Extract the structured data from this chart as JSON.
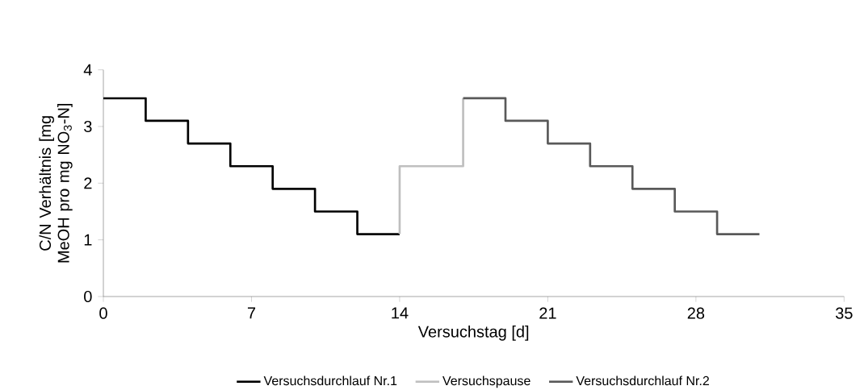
{
  "chart_data": {
    "type": "step",
    "xlabel": "Versuchstag [d]",
    "ylabel": "C/N Verhältnis [mg MeOH pro mg NO$_{3}$-N]",
    "xlim": [
      0,
      35
    ],
    "xticks": [
      0,
      7,
      14,
      21,
      28,
      35
    ],
    "ylim": [
      0,
      4
    ],
    "yticks": [
      0,
      1,
      2,
      3,
      4
    ],
    "grid": false,
    "legend": "bottom",
    "line_style": "solid",
    "marker": "none",
    "series": [
      {
        "name": "Versuchsdurchlauf Nr.1",
        "color": "#000000",
        "x": [
          0,
          2,
          4,
          6,
          8,
          10,
          12,
          14
        ],
        "values": [
          3.5,
          3.1,
          2.7,
          2.3,
          1.9,
          1.5,
          1.1,
          1.1
        ]
      },
      {
        "name": "Versuchspause",
        "color": "#bfbfbf",
        "x": [
          14,
          14,
          17,
          17
        ],
        "values": [
          1.1,
          2.3,
          2.3,
          3.5
        ]
      },
      {
        "name": "Versuchsdurchlauf Nr.2",
        "color": "#595959",
        "x": [
          17,
          19,
          21,
          23,
          25,
          27,
          29,
          31
        ],
        "values": [
          3.5,
          3.1,
          2.7,
          2.3,
          1.9,
          1.5,
          1.1,
          1.1
        ]
      }
    ]
  }
}
